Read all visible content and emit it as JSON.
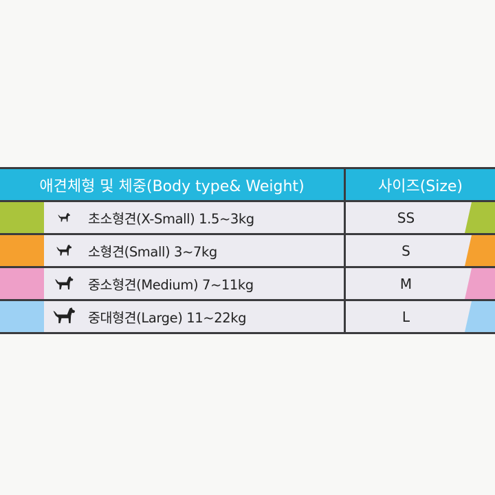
{
  "table": {
    "header": {
      "body_type": "애견체형 및 체중(Body type& Weight)",
      "size": "사이즈(Size)"
    },
    "rows": [
      {
        "description": "초소형견(X-Small) 1.5~3kg",
        "size": "SS",
        "color": "#aac43c",
        "icon": "tiny-dog-icon"
      },
      {
        "description": "소형견(Small) 3~7kg",
        "size": "S",
        "color": "#f5a02f",
        "icon": "small-dog-icon"
      },
      {
        "description": "중소형견(Medium) 7~11kg",
        "size": "M",
        "color": "#ee9fc8",
        "icon": "medium-dog-icon"
      },
      {
        "description": "중대형견(Large) 11~22kg",
        "size": "L",
        "color": "#9dd1f4",
        "icon": "large-dog-icon"
      }
    ]
  }
}
